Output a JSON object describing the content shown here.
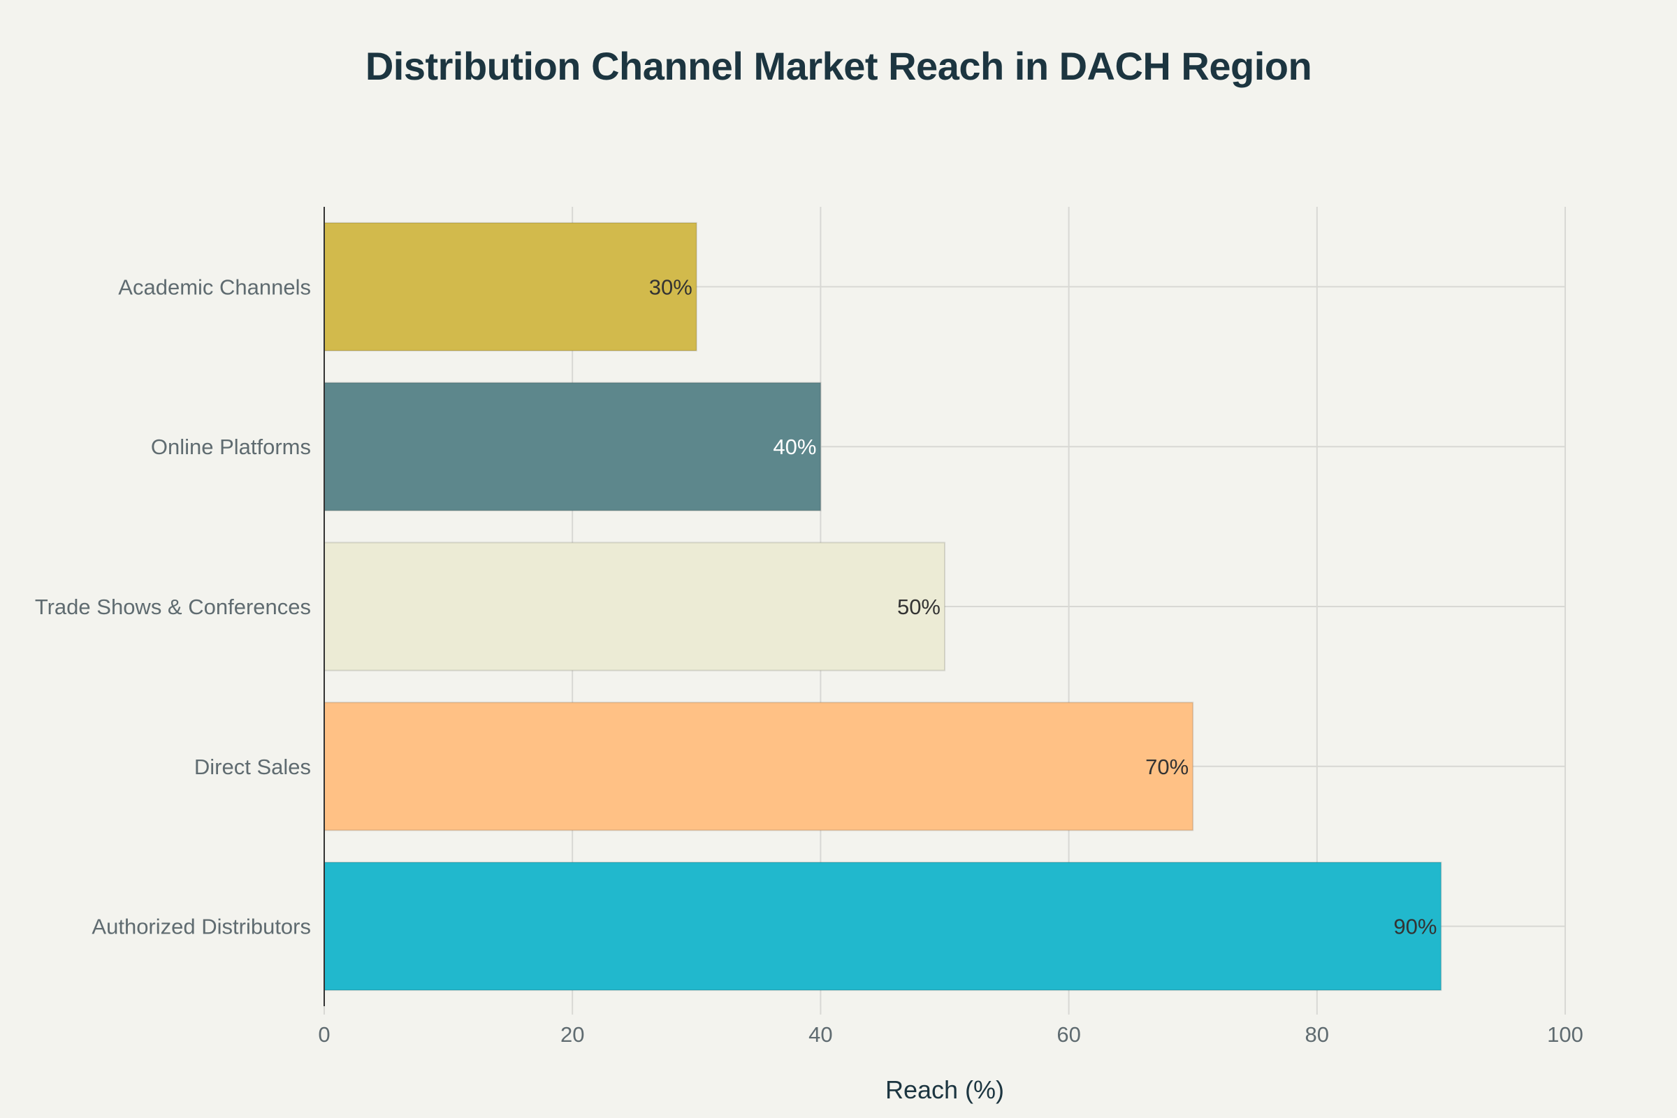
{
  "chart_data": {
    "type": "bar",
    "orientation": "horizontal",
    "title": "Distribution Channel Market Reach in DACH Region",
    "xlabel": "Reach (%)",
    "ylabel": "",
    "xlim": [
      0,
      100
    ],
    "x_ticks": [
      0,
      20,
      40,
      60,
      80,
      100
    ],
    "grid": true,
    "categories": [
      "Authorized Distributors",
      "Direct Sales",
      "Trade Shows & Conferences",
      "Online Platforms",
      "Academic Channels"
    ],
    "values": [
      90,
      70,
      50,
      40,
      30
    ],
    "data_labels": [
      "90%",
      "70%",
      "50%",
      "40%",
      "30%"
    ],
    "colors": [
      "#21b8cd",
      "#ffc185",
      "#ecebd5",
      "#5d878c",
      "#d2ba4c"
    ],
    "label_colors": [
      "#333333",
      "#333333",
      "#333333",
      "#ffffff",
      "#333333"
    ]
  }
}
